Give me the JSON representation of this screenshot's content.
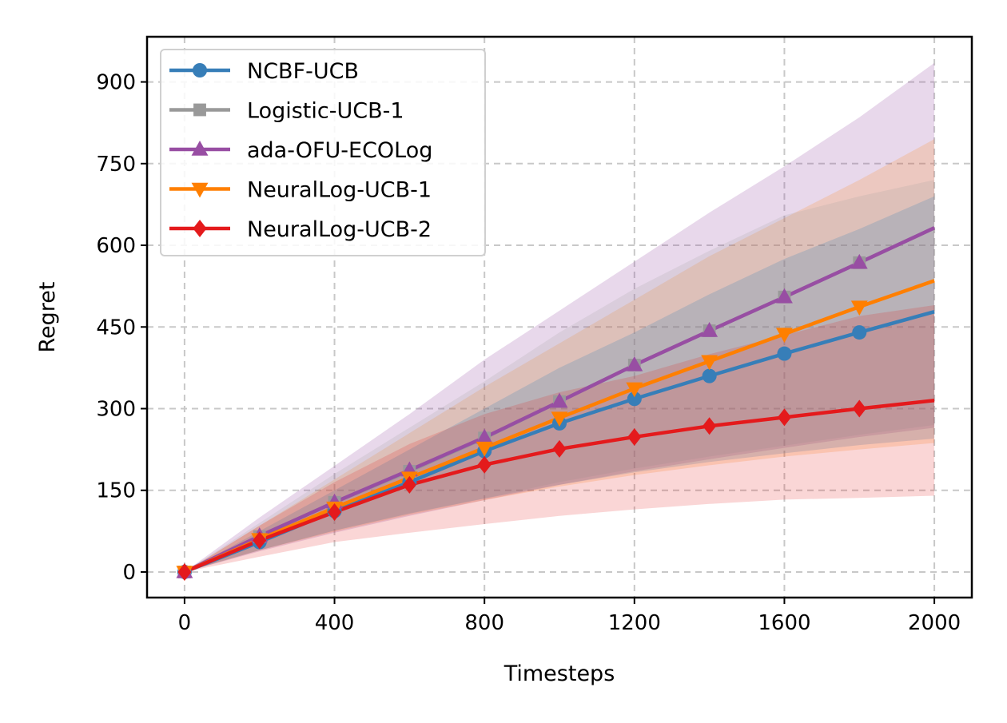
{
  "chart_data": {
    "type": "line",
    "title": "",
    "xlabel": "Timesteps",
    "ylabel": "Regret",
    "xlim": [
      -100,
      2100
    ],
    "ylim": [
      -47,
      983
    ],
    "xticks": [
      0,
      400,
      800,
      1200,
      1600,
      2000
    ],
    "yticks": [
      0,
      150,
      300,
      450,
      600,
      750,
      900
    ],
    "xtick_labels": [
      "0",
      "400",
      "800",
      "1200",
      "1600",
      "2000"
    ],
    "ytick_labels": [
      "0",
      "150",
      "300",
      "450",
      "600",
      "750",
      "900"
    ],
    "grid": true,
    "legend_position": "top-left",
    "x": [
      0,
      200,
      400,
      600,
      800,
      1000,
      1200,
      1400,
      1600,
      1800,
      2000
    ],
    "series": [
      {
        "name": "NCBF-UCB",
        "color": "#377eb8",
        "marker": "circle",
        "values": [
          0,
          55,
          112,
          165,
          222,
          273,
          318,
          360,
          401,
          440,
          478
        ],
        "band_lower": [
          0,
          40,
          76,
          107,
          135,
          160,
          183,
          202,
          218,
          233,
          245
        ],
        "band_upper": [
          0,
          75,
          150,
          225,
          300,
          375,
          440,
          510,
          575,
          630,
          690
        ]
      },
      {
        "name": "Logistic-UCB-1",
        "color": "#999999",
        "marker": "square",
        "values": [
          0,
          65,
          128,
          185,
          246,
          313,
          380,
          443,
          505,
          568,
          632
        ],
        "band_lower": [
          0,
          40,
          76,
          108,
          135,
          165,
          190,
          212,
          232,
          252,
          270
        ],
        "band_upper": [
          0,
          90,
          180,
          265,
          350,
          440,
          520,
          590,
          655,
          690,
          720
        ]
      },
      {
        "name": "ada-OFU-ECOLog",
        "color": "#984ea3",
        "marker": "triangle-up",
        "values": [
          0,
          66,
          128,
          187,
          247,
          313,
          380,
          443,
          505,
          568,
          632
        ],
        "band_lower": [
          0,
          38,
          72,
          103,
          132,
          160,
          185,
          207,
          228,
          248,
          265
        ],
        "band_upper": [
          0,
          100,
          195,
          290,
          390,
          480,
          570,
          660,
          745,
          835,
          935
        ]
      },
      {
        "name": "NeuralLog-UCB-1",
        "color": "#ff7f00",
        "marker": "triangle-down",
        "values": [
          0,
          60,
          118,
          173,
          228,
          283,
          337,
          387,
          437,
          487,
          535
        ],
        "band_lower": [
          0,
          40,
          74,
          105,
          132,
          157,
          178,
          196,
          212,
          225,
          237
        ],
        "band_upper": [
          0,
          85,
          170,
          255,
          340,
          420,
          500,
          580,
          650,
          720,
          795
        ]
      },
      {
        "name": "NeuralLog-UCB-2",
        "color": "#e41a1c",
        "marker": "diamond",
        "values": [
          0,
          58,
          110,
          160,
          197,
          226,
          248,
          268,
          284,
          300,
          315
        ],
        "band_lower": [
          0,
          28,
          55,
          72,
          88,
          103,
          115,
          125,
          133,
          136,
          140
        ],
        "band_upper": [
          0,
          85,
          165,
          235,
          290,
          330,
          360,
          400,
          435,
          470,
          490
        ]
      }
    ]
  }
}
